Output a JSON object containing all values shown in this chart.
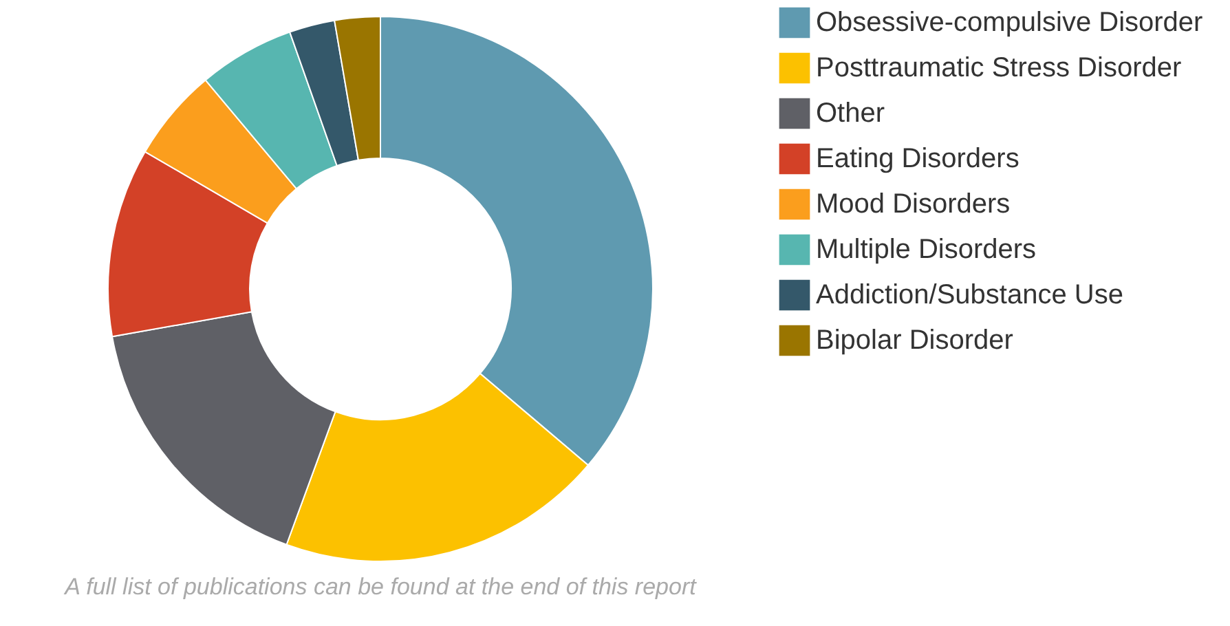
{
  "chart_data": {
    "type": "donut",
    "categories": [
      "Obsessive-compulsive Disorder",
      "Posttraumatic Stress Disorder",
      "Other",
      "Eating Disorders",
      "Mood Disorders",
      "Multiple Disorders",
      "Addiction/Substance Use",
      "Bipolar Disorder"
    ],
    "values": [
      36.2,
      19.4,
      16.6,
      11.2,
      5.5,
      5.7,
      2.7,
      2.7
    ],
    "colors": [
      "#5f9ab0",
      "#fcc100",
      "#5f6066",
      "#d34127",
      "#fb9e1d",
      "#57b6b0",
      "#34586a",
      "#9a7500"
    ],
    "legend": "right",
    "annotations": [
      "A full list of publications can be found at the end of this report"
    ]
  }
}
